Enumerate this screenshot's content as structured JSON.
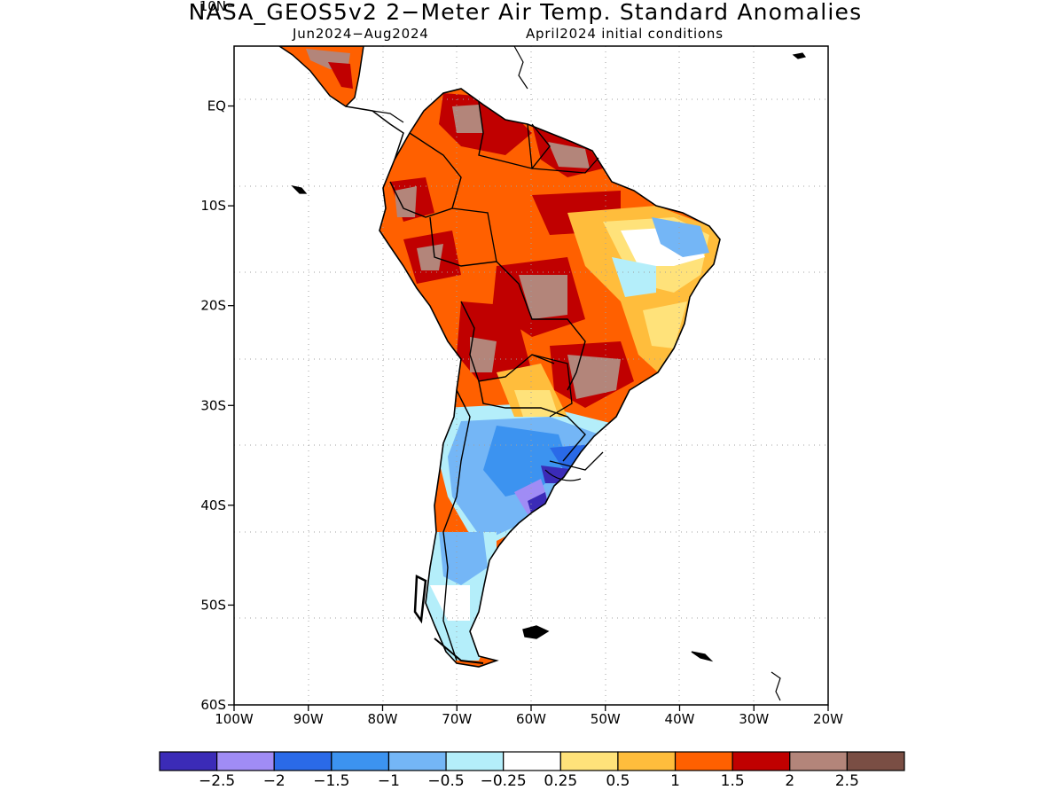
{
  "title": "NASA_GEOS5v2 2−Meter Air Temp. Standard Anomalies",
  "subtitle_left": "Jun2024−Aug2024",
  "subtitle_right": "April2024 initial conditions",
  "map": {
    "lon_range": [
      -100,
      -20
    ],
    "lat_range": [
      -60,
      6
    ],
    "lat_ticks": [
      "10N",
      "EQ",
      "10S",
      "20S",
      "30S",
      "40S",
      "50S",
      "60S"
    ],
    "lat_tick_values": [
      10,
      0,
      -10,
      -20,
      -30,
      -40,
      -50,
      -60
    ],
    "lon_ticks": [
      "100W",
      "90W",
      "80W",
      "70W",
      "60W",
      "50W",
      "40W",
      "30W",
      "20W"
    ],
    "lon_tick_values": [
      -100,
      -90,
      -80,
      -70,
      -60,
      -50,
      -40,
      -30,
      -20
    ],
    "grid": true
  },
  "colorbar": {
    "colors": [
      "#3b2bb7",
      "#a08cf5",
      "#2a6ae8",
      "#3c93f0",
      "#74b6f6",
      "#b4eefa",
      "#ffffff",
      "#ffe27a",
      "#ffbd3c",
      "#ff6000",
      "#c00000",
      "#b3857a",
      "#7a4e44"
    ],
    "labels": [
      "−2.5",
      "−2",
      "−1.5",
      "−1",
      "−0.5",
      "−0.25",
      "0.25",
      "0.5",
      "1",
      "1.5",
      "2",
      "2.5"
    ]
  }
}
